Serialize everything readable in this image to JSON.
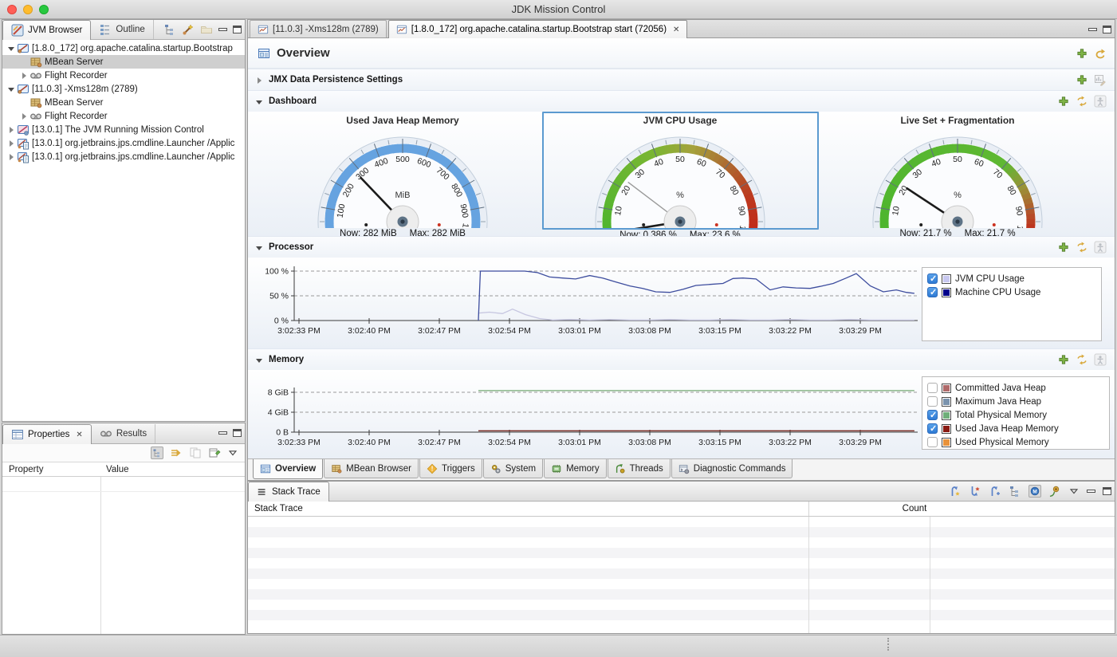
{
  "window": {
    "title": "JDK Mission Control"
  },
  "jvm_browser": {
    "tabs": [
      {
        "label": "JVM Browser"
      },
      {
        "label": "Outline"
      }
    ],
    "tree": [
      {
        "label": "[1.8.0_172] org.apache.catalina.startup.Bootstrap",
        "level": 0,
        "expander": "expanded",
        "icon": "jvm-icon",
        "selected": false
      },
      {
        "label": "MBean Server",
        "level": 1,
        "expander": "none",
        "icon": "mbean-server-icon",
        "selected": true
      },
      {
        "label": "Flight Recorder",
        "level": 1,
        "expander": "collapsed",
        "icon": "flight-recorder-icon",
        "selected": false
      },
      {
        "label": "[11.0.3] -Xms128m (2789)",
        "level": 0,
        "expander": "expanded",
        "icon": "jvm-icon",
        "selected": false
      },
      {
        "label": "MBean Server",
        "level": 1,
        "expander": "none",
        "icon": "mbean-server-icon",
        "selected": false
      },
      {
        "label": "Flight Recorder",
        "level": 1,
        "expander": "collapsed",
        "icon": "flight-recorder-icon",
        "selected": false
      },
      {
        "label": "[13.0.1] The JVM Running Mission Control",
        "level": 0,
        "expander": "collapsed",
        "icon": "jvm-mc-icon",
        "selected": false
      },
      {
        "label": "[13.0.1] org.jetbrains.jps.cmdline.Launcher /Applic",
        "level": 0,
        "expander": "collapsed",
        "icon": "jvm-launcher-icon",
        "selected": false
      },
      {
        "label": "[13.0.1] org.jetbrains.jps.cmdline.Launcher /Applic",
        "level": 0,
        "expander": "collapsed",
        "icon": "jvm-launcher-icon",
        "selected": false
      }
    ]
  },
  "properties_panel": {
    "tabs": [
      {
        "label": "Properties",
        "closable": true
      },
      {
        "label": "Results",
        "closable": false
      }
    ],
    "columns": [
      "Property",
      "Value"
    ]
  },
  "editor": {
    "tabs": [
      {
        "label": "[11.0.3] -Xms128m (2789)",
        "active": false,
        "closable": false
      },
      {
        "label": "[1.8.0_172] org.apache.catalina.startup.Bootstrap start (72056)",
        "active": true,
        "closable": true
      }
    ],
    "page_title": "Overview",
    "jmx_section_title": "JMX Data Persistence Settings",
    "dashboard_title": "Dashboard",
    "processor_title": "Processor",
    "memory_title": "Memory",
    "bottom_tabs": [
      {
        "label": "Overview",
        "icon": "overview-icon",
        "active": true
      },
      {
        "label": "MBean Browser",
        "icon": "mbean-browser-icon",
        "active": false
      },
      {
        "label": "Triggers",
        "icon": "triggers-icon",
        "active": false
      },
      {
        "label": "System",
        "icon": "system-icon",
        "active": false
      },
      {
        "label": "Memory",
        "icon": "memory-tab-icon",
        "active": false
      },
      {
        "label": "Threads",
        "icon": "threads-icon",
        "active": false
      },
      {
        "label": "Diagnostic Commands",
        "icon": "diagnostic-commands-icon",
        "active": false
      }
    ]
  },
  "stack_trace": {
    "tab_label": "Stack Trace",
    "columns": [
      "Stack Trace",
      "Count"
    ]
  },
  "chart_data": [
    {
      "type": "gauge",
      "title": "Used Java Heap Memory",
      "unit": "MiB",
      "min": 0,
      "max": 1000,
      "tick_step": 100,
      "now": 282,
      "max_value": 282,
      "now_label": "Now: 282 MiB",
      "max_label": "Max: 282 MiB",
      "selected": false,
      "arc_stops": [
        [
          0,
          "#66a3e0"
        ],
        [
          1000,
          "#66a3e0"
        ]
      ]
    },
    {
      "type": "gauge",
      "title": "JVM CPU Usage",
      "unit": "%",
      "min": 0,
      "max": 100,
      "tick_step": 10,
      "now": 0.386,
      "max_value": 23.6,
      "now_label": "Now: 0.386 %",
      "max_label": "Max: 23.6 %",
      "selected": true,
      "arc_stops": [
        [
          0,
          "#4db52e"
        ],
        [
          40,
          "#7ab633"
        ],
        [
          55,
          "#a5a23c"
        ],
        [
          70,
          "#ad6a31"
        ],
        [
          85,
          "#bc3a1f"
        ],
        [
          100,
          "#c22718"
        ]
      ]
    },
    {
      "type": "gauge",
      "title": "Live Set + Fragmentation",
      "unit": "%",
      "min": 0,
      "max": 100,
      "tick_step": 10,
      "now": 21.7,
      "max_value": 21.7,
      "now_label": "Now: 21.7 %",
      "max_label": "Max: 21.7 %",
      "selected": false,
      "arc_stops": [
        [
          0,
          "#4db52e"
        ],
        [
          70,
          "#5fb832"
        ],
        [
          82,
          "#9c9038"
        ],
        [
          92,
          "#b5502a"
        ],
        [
          100,
          "#c22718"
        ]
      ]
    },
    {
      "type": "line",
      "title": "Processor",
      "yticks": [
        {
          "label": "100 %",
          "value": 100
        },
        {
          "label": "50 %",
          "value": 50
        },
        {
          "label": "0 %",
          "value": 0
        }
      ],
      "ymax": 110,
      "xtick_labels": [
        "3:02:33 PM",
        "3:02:40 PM",
        "3:02:47 PM",
        "3:02:54 PM",
        "3:03:01 PM",
        "3:03:08 PM",
        "3:03:15 PM",
        "3:03:22 PM",
        "3:03:29 PM"
      ],
      "xtick_interval_seconds": 7,
      "legend": [
        {
          "label": "JVM CPU Usage",
          "swatch": "#c8c8f0",
          "checked": true
        },
        {
          "label": "Machine CPU Usage",
          "swatch": "#00008b",
          "checked": true
        }
      ],
      "series": [
        {
          "name": "JVM CPU Usage",
          "color": "#c6c6e0",
          "points": [
            [
              17.9,
              15
            ],
            [
              19,
              17
            ],
            [
              20.3,
              14
            ],
            [
              21.3,
              23
            ],
            [
              22.6,
              12
            ],
            [
              24,
              4
            ],
            [
              25.3,
              1
            ],
            [
              27,
              2
            ],
            [
              29,
              1
            ],
            [
              31,
              2
            ],
            [
              33,
              1
            ],
            [
              35,
              1
            ],
            [
              37,
              2
            ],
            [
              39,
              1
            ],
            [
              41,
              1
            ],
            [
              43,
              2
            ],
            [
              45,
              1
            ],
            [
              47,
              1
            ],
            [
              49,
              2
            ],
            [
              51,
              1
            ],
            [
              53,
              1
            ],
            [
              55,
              2
            ],
            [
              57,
              1
            ],
            [
              59,
              1
            ],
            [
              61.4,
              1
            ]
          ]
        },
        {
          "name": "Machine CPU Usage",
          "color": "#3d4d9e",
          "points": [
            [
              17.9,
              0
            ],
            [
              18.1,
              100
            ],
            [
              19.5,
              100
            ],
            [
              21,
              100
            ],
            [
              22.5,
              100
            ],
            [
              23.8,
              97
            ],
            [
              25,
              88
            ],
            [
              26.3,
              86
            ],
            [
              27.6,
              84
            ],
            [
              29,
              91
            ],
            [
              30.3,
              86
            ],
            [
              31.6,
              78
            ],
            [
              33,
              70
            ],
            [
              34.3,
              65
            ],
            [
              35.6,
              58
            ],
            [
              37,
              57
            ],
            [
              38.3,
              63
            ],
            [
              39.6,
              71
            ],
            [
              41,
              73
            ],
            [
              42.3,
              75
            ],
            [
              43.3,
              85
            ],
            [
              44.3,
              86
            ],
            [
              45.6,
              84
            ],
            [
              47,
              62
            ],
            [
              48.3,
              68
            ],
            [
              49.6,
              66
            ],
            [
              51,
              65
            ],
            [
              52,
              69
            ],
            [
              53.3,
              75
            ],
            [
              54.6,
              86
            ],
            [
              55.6,
              95
            ],
            [
              57,
              70
            ],
            [
              58.3,
              58
            ],
            [
              59.6,
              62
            ],
            [
              60.6,
              57
            ],
            [
              61.4,
              55
            ]
          ]
        }
      ]
    },
    {
      "type": "line",
      "title": "Memory",
      "yticks": [
        {
          "label": "8 GiB",
          "value": 8
        },
        {
          "label": "4 GiB",
          "value": 4
        },
        {
          "label": "0 B",
          "value": 0
        }
      ],
      "ymax": 10,
      "xtick_labels": [
        "3:02:33 PM",
        "3:02:40 PM",
        "3:02:47 PM",
        "3:02:54 PM",
        "3:03:01 PM",
        "3:03:08 PM",
        "3:03:15 PM",
        "3:03:22 PM",
        "3:03:29 PM"
      ],
      "xtick_interval_seconds": 7,
      "legend": [
        {
          "label": "Committed Java Heap",
          "swatch": "#b06a6a",
          "checked": false
        },
        {
          "label": "Maximum Java Heap",
          "swatch": "#7a93ad",
          "checked": false
        },
        {
          "label": "Total Physical Memory",
          "swatch": "#6fae79",
          "checked": true
        },
        {
          "label": "Used Java Heap Memory",
          "swatch": "#8a1a12",
          "checked": true
        },
        {
          "label": "Used Physical Memory",
          "swatch": "#e8923a",
          "checked": false
        }
      ],
      "series": [
        {
          "name": "Total Physical Memory",
          "color": "#74a874",
          "points": [
            [
              17.9,
              8.33
            ],
            [
              61.4,
              8.33
            ]
          ]
        },
        {
          "name": "Used Java Heap Memory",
          "color": "#7a2a22",
          "points": [
            [
              17.9,
              0.28
            ],
            [
              61.4,
              0.28
            ]
          ]
        }
      ]
    }
  ]
}
